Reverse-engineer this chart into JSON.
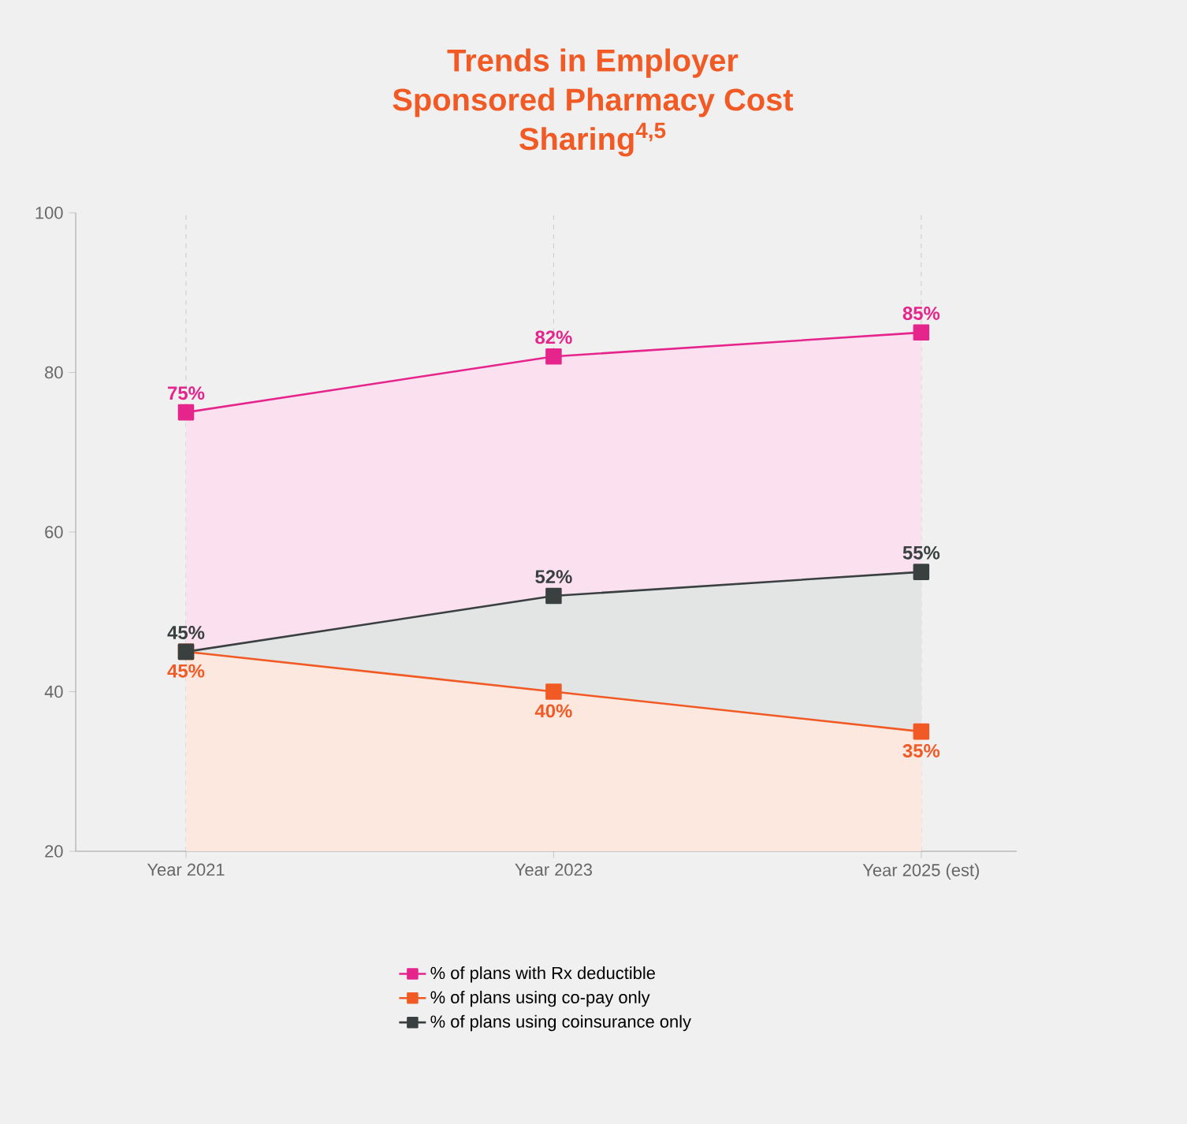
{
  "chart_data": {
    "type": "area",
    "title": "Trends in Employer Sponsored Pharmacy Cost Sharing$^{4,5}$",
    "categories": [
      "Year 2021",
      "Year 2023",
      "Year 2025 (est)"
    ],
    "series": [
      {
        "name": "% of plans with Rx deductible",
        "color": "#e5258c",
        "values": [
          75,
          82,
          85
        ],
        "value_labels": [
          "75%",
          "82%",
          "85%"
        ]
      },
      {
        "name": "% of plans using co-pay only",
        "color": "#f15a24",
        "values": [
          45,
          40,
          35
        ],
        "value_labels": [
          "45%",
          "40%",
          "35%"
        ]
      },
      {
        "name": "% of plans using coinsurance only",
        "color": "#3a4040",
        "values": [
          45,
          52,
          55
        ],
        "value_labels": [
          "45%",
          "52%",
          "55%"
        ]
      }
    ],
    "ylim": [
      20,
      100
    ],
    "yticks": [
      20,
      40,
      60,
      80,
      100
    ],
    "grid": "x",
    "legend": "bottom",
    "marker": "square",
    "line_style": "solid"
  }
}
